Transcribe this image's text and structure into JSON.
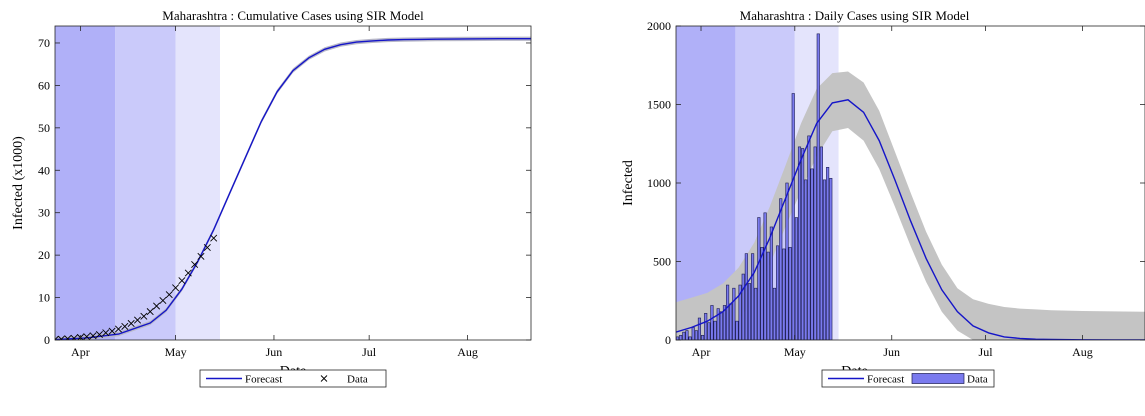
{
  "colors": {
    "forecast": "#1515c8",
    "band_cumulative": "#b8b8c8",
    "band_daily": "#c4c4c4",
    "bar_fill": "#7a7aee",
    "bar_edge": "#1a1a50",
    "phase1": "#b0b0f8",
    "phase2": "#cacafa",
    "phase3": "#e4e4fc",
    "marker": "#000000"
  },
  "chart_data": [
    {
      "type": "line",
      "title": "Maharashtra : Cumulative Cases using SIR Model",
      "xlabel": "Date",
      "ylabel": "Infected (x1000)",
      "x_unit": "days since 2020-03-24",
      "xlim": [
        0,
        150
      ],
      "ylim": [
        0,
        74
      ],
      "x_ticks": [
        {
          "label": "Apr",
          "x": 8
        },
        {
          "label": "May",
          "x": 38
        },
        {
          "label": "Jun",
          "x": 69
        },
        {
          "label": "Jul",
          "x": 99
        },
        {
          "label": "Aug",
          "x": 130
        }
      ],
      "y_ticks": [
        0,
        10,
        20,
        30,
        40,
        50,
        60,
        70
      ],
      "grid": false,
      "phases": [
        {
          "x0": 0,
          "x1": 19
        },
        {
          "x0": 19,
          "x1": 38
        },
        {
          "x0": 38,
          "x1": 52
        }
      ],
      "forecast": {
        "name": "Forecast",
        "x": [
          0,
          10,
          20,
          30,
          35,
          40,
          45,
          50,
          55,
          60,
          65,
          70,
          75,
          80,
          85,
          90,
          95,
          100,
          105,
          110,
          115,
          120,
          130,
          140,
          150
        ],
        "y": [
          0.1,
          0.5,
          1.4,
          4.0,
          7.0,
          12.0,
          18.5,
          26.0,
          34.5,
          43.0,
          51.5,
          58.5,
          63.5,
          66.5,
          68.5,
          69.6,
          70.2,
          70.5,
          70.7,
          70.8,
          70.85,
          70.9,
          70.95,
          71.0,
          71.0
        ],
        "band": 0.5
      },
      "data": {
        "name": "Data",
        "x": [
          0,
          2,
          4,
          6,
          8,
          10,
          12,
          14,
          16,
          18,
          20,
          22,
          24,
          26,
          28,
          30,
          32,
          34,
          36,
          38,
          40,
          42,
          44,
          46,
          48,
          50
        ],
        "y": [
          0.1,
          0.2,
          0.3,
          0.4,
          0.6,
          0.8,
          1.0,
          1.3,
          1.7,
          2.1,
          2.6,
          3.2,
          3.9,
          4.7,
          5.6,
          6.7,
          8.0,
          9.3,
          10.7,
          12.3,
          14.0,
          15.8,
          17.8,
          19.7,
          21.8,
          24.0
        ]
      },
      "legend": "bottom"
    },
    {
      "type": "bar",
      "title": "Maharashtra : Daily Cases using SIR Model",
      "xlabel": "Date",
      "ylabel": "Infected",
      "x_unit": "days since 2020-03-24",
      "xlim": [
        0,
        150
      ],
      "ylim": [
        0,
        2000
      ],
      "x_ticks": [
        {
          "label": "Apr",
          "x": 8
        },
        {
          "label": "May",
          "x": 38
        },
        {
          "label": "Jun",
          "x": 69
        },
        {
          "label": "Jul",
          "x": 99
        },
        {
          "label": "Aug",
          "x": 130
        }
      ],
      "y_ticks": [
        0,
        500,
        1000,
        1500,
        2000
      ],
      "grid": false,
      "phases": [
        {
          "x0": 0,
          "x1": 19
        },
        {
          "x0": 19,
          "x1": 38
        },
        {
          "x0": 38,
          "x1": 52
        }
      ],
      "forecast": {
        "name": "Forecast",
        "x": [
          0,
          5,
          10,
          15,
          20,
          25,
          30,
          35,
          40,
          45,
          50,
          55,
          60,
          65,
          70,
          75,
          80,
          85,
          90,
          95,
          100,
          105,
          110,
          115,
          120,
          130,
          140,
          150
        ],
        "y": [
          50,
          80,
          120,
          180,
          280,
          430,
          650,
          900,
          1150,
          1380,
          1510,
          1530,
          1450,
          1270,
          1020,
          760,
          520,
          320,
          180,
          90,
          45,
          20,
          10,
          5,
          3,
          1,
          0,
          0
        ]
      },
      "band": {
        "upper": [
          240,
          270,
          300,
          360,
          460,
          620,
          850,
          1110,
          1380,
          1600,
          1700,
          1710,
          1640,
          1460,
          1200,
          940,
          690,
          480,
          330,
          260,
          230,
          210,
          200,
          195,
          190,
          185,
          182,
          180
        ],
        "lower": [
          0,
          0,
          0,
          20,
          120,
          270,
          480,
          720,
          950,
          1170,
          1330,
          1350,
          1270,
          1090,
          850,
          600,
          370,
          180,
          60,
          0,
          0,
          0,
          0,
          0,
          0,
          0,
          0,
          0
        ]
      },
      "bars": {
        "name": "Data",
        "x": [
          0,
          1,
          2,
          3,
          4,
          5,
          6,
          7,
          8,
          9,
          10,
          11,
          12,
          13,
          14,
          15,
          16,
          17,
          18,
          19,
          20,
          21,
          22,
          23,
          24,
          25,
          26,
          27,
          28,
          29,
          30,
          31,
          32,
          33,
          34,
          35,
          36,
          37,
          38,
          39,
          40,
          41,
          42,
          43,
          44,
          45,
          46,
          47,
          48,
          49
        ],
        "values": [
          20,
          30,
          50,
          60,
          20,
          80,
          60,
          140,
          30,
          170,
          110,
          220,
          120,
          200,
          180,
          220,
          350,
          230,
          330,
          120,
          350,
          420,
          550,
          360,
          550,
          330,
          780,
          590,
          810,
          560,
          720,
          330,
          600,
          900,
          580,
          1000,
          590,
          1570,
          780,
          1230,
          1220,
          1020,
          1300,
          1090,
          1230,
          1950,
          1230,
          1020,
          1100,
          1030
        ]
      },
      "legend": "bottom"
    }
  ]
}
